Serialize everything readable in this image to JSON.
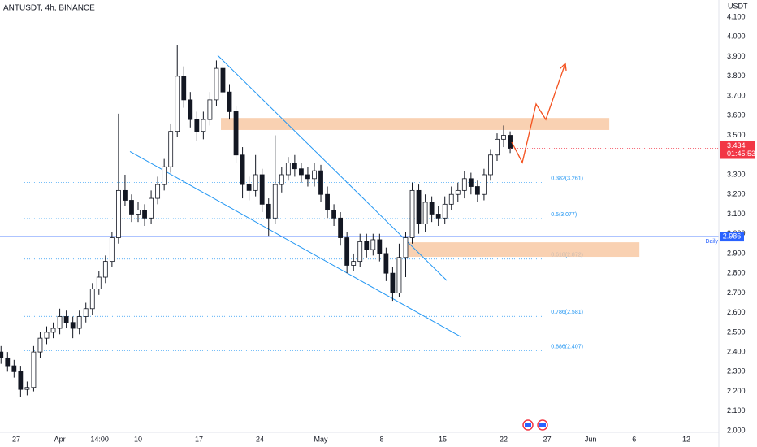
{
  "chart_data": {
    "type": "candlestick",
    "title": "ANTUSDT, 4h, BINANCE",
    "y_axis_label": "USDT",
    "up_color": "#ffffff",
    "down_color": "#131722",
    "ylim": [
      1.992,
      4.187
    ],
    "yticks": [
      {
        "value": 2.0,
        "label": "2.000"
      },
      {
        "value": 2.1,
        "label": "2.100"
      },
      {
        "value": 2.2,
        "label": "2.200"
      },
      {
        "value": 2.3,
        "label": "2.300"
      },
      {
        "value": 2.4,
        "label": "2.400"
      },
      {
        "value": 2.5,
        "label": "2.500"
      },
      {
        "value": 2.6,
        "label": "2.600"
      },
      {
        "value": 2.7,
        "label": "2.700"
      },
      {
        "value": 2.8,
        "label": "2.800"
      },
      {
        "value": 2.9,
        "label": "2.900"
      },
      {
        "value": 3.0,
        "label": "3.000"
      },
      {
        "value": 3.1,
        "label": "3.100"
      },
      {
        "value": 3.2,
        "label": "3.200"
      },
      {
        "value": 3.3,
        "label": "3.300"
      },
      {
        "value": 3.4,
        "label": "3.400"
      },
      {
        "value": 3.5,
        "label": "3.500"
      },
      {
        "value": 3.6,
        "label": "3.600"
      },
      {
        "value": 3.7,
        "label": "3.700"
      },
      {
        "value": 3.8,
        "label": "3.800"
      },
      {
        "value": 3.9,
        "label": "3.900"
      },
      {
        "value": 4.0,
        "label": "4.000"
      },
      {
        "value": 4.1,
        "label": "4.100"
      }
    ],
    "xlim": [
      -1.867,
      80.73
    ],
    "xticks": [
      {
        "value": 0,
        "label": "27"
      },
      {
        "value": 5,
        "label": "Apr"
      },
      {
        "value": 9.583,
        "label": "14:00"
      },
      {
        "value": 14,
        "label": "10"
      },
      {
        "value": 21,
        "label": "17"
      },
      {
        "value": 28,
        "label": "24"
      },
      {
        "value": 35,
        "label": "May"
      },
      {
        "value": 42,
        "label": "8"
      },
      {
        "value": 49,
        "label": "15"
      },
      {
        "value": 56,
        "label": "22"
      },
      {
        "value": 61,
        "label": "27"
      },
      {
        "value": 66,
        "label": "Jun"
      },
      {
        "value": 71,
        "label": "6"
      },
      {
        "value": 77,
        "label": "12"
      }
    ],
    "x": [
      -1.75,
      -1,
      -0.25,
      0.5,
      1.25,
      2,
      2.75,
      3.5,
      4.25,
      5,
      5.75,
      6.5,
      7.25,
      8,
      8.75,
      9.5,
      10.25,
      11,
      11.75,
      12.5,
      13.25,
      14,
      14.75,
      15.5,
      16.25,
      17,
      17.75,
      18.5,
      19.25,
      20,
      20.75,
      21.5,
      22.25,
      23,
      23.75,
      24.5,
      25.25,
      26,
      26.75,
      27.5,
      28.25,
      29,
      29.75,
      30.5,
      31.25,
      32,
      32.75,
      33.5,
      34.25,
      35,
      35.75,
      36.5,
      37.25,
      38,
      38.75,
      39.5,
      40.25,
      41,
      41.75,
      42.5,
      43.25,
      44,
      44.75,
      45.5,
      46.25,
      47,
      47.75,
      48.5,
      49.25,
      50,
      50.75,
      51.5,
      52.25,
      53,
      53.75,
      54.5,
      55.25,
      56,
      56.75
    ],
    "open": [
      2.4,
      2.37,
      2.33,
      2.3,
      2.21,
      2.22,
      2.4,
      2.47,
      2.5,
      2.52,
      2.58,
      2.55,
      2.52,
      2.58,
      2.62,
      2.72,
      2.78,
      2.86,
      2.98,
      3.22,
      3.17,
      3.1,
      3.12,
      3.08,
      3.18,
      3.25,
      3.34,
      3.52,
      3.8,
      3.68,
      3.58,
      3.52,
      3.58,
      3.68,
      3.84,
      3.72,
      3.62,
      3.4,
      3.25,
      3.22,
      3.3,
      3.15,
      3.08,
      3.25,
      3.3,
      3.36,
      3.33,
      3.3,
      3.28,
      3.32,
      3.2,
      3.12,
      3.08,
      2.98,
      2.84,
      2.86,
      2.96,
      2.92,
      2.97,
      2.9,
      2.8,
      2.7,
      2.88,
      2.98,
      3.22,
      3.05,
      3.16,
      3.1,
      3.08,
      3.15,
      3.2,
      3.22,
      3.28,
      3.24,
      3.2,
      3.3,
      3.4,
      3.48,
      3.5
    ],
    "high": [
      2.43,
      2.4,
      2.36,
      2.33,
      2.25,
      2.43,
      2.5,
      2.53,
      2.55,
      2.62,
      2.61,
      2.58,
      2.61,
      2.65,
      2.75,
      2.81,
      2.89,
      3.01,
      3.61,
      3.3,
      3.2,
      3.16,
      3.15,
      3.22,
      3.29,
      3.38,
      3.56,
      3.96,
      3.85,
      3.72,
      3.62,
      3.62,
      3.72,
      3.88,
      3.87,
      3.76,
      3.65,
      3.44,
      3.29,
      3.4,
      3.33,
      3.18,
      3.5,
      3.34,
      3.39,
      3.4,
      3.36,
      3.34,
      3.36,
      3.35,
      3.24,
      3.15,
      3.11,
      3.01,
      2.9,
      3.0,
      3.0,
      3.0,
      3.0,
      2.93,
      2.83,
      2.95,
      3.01,
      3.26,
      3.25,
      3.2,
      3.19,
      3.14,
      3.19,
      3.24,
      3.26,
      3.32,
      3.31,
      3.27,
      3.33,
      3.43,
      3.51,
      3.55,
      3.52
    ],
    "low": [
      2.34,
      2.3,
      2.27,
      2.17,
      2.18,
      2.2,
      2.37,
      2.44,
      2.47,
      2.49,
      2.52,
      2.47,
      2.49,
      2.55,
      2.59,
      2.69,
      2.75,
      2.83,
      2.95,
      3.14,
      3.06,
      3.06,
      3.04,
      3.05,
      3.15,
      3.22,
      3.31,
      3.49,
      3.64,
      3.54,
      3.47,
      3.48,
      3.55,
      3.65,
      3.68,
      3.58,
      3.36,
      3.18,
      3.17,
      3.19,
      3.11,
      2.99,
      3.05,
      3.21,
      3.27,
      3.29,
      3.26,
      3.24,
      3.24,
      3.16,
      3.08,
      3.04,
      2.94,
      2.8,
      2.81,
      2.83,
      2.88,
      2.89,
      2.86,
      2.76,
      2.66,
      2.68,
      2.78,
      2.95,
      3.0,
      3.01,
      3.06,
      3.04,
      3.05,
      3.12,
      3.16,
      3.18,
      3.2,
      3.16,
      3.17,
      3.27,
      3.37,
      3.44,
      3.41
    ],
    "close": [
      2.37,
      2.33,
      2.3,
      2.21,
      2.22,
      2.4,
      2.47,
      2.5,
      2.52,
      2.58,
      2.55,
      2.52,
      2.58,
      2.62,
      2.72,
      2.78,
      2.86,
      2.98,
      3.22,
      3.17,
      3.1,
      3.12,
      3.08,
      3.18,
      3.25,
      3.34,
      3.52,
      3.8,
      3.68,
      3.58,
      3.52,
      3.58,
      3.68,
      3.84,
      3.72,
      3.62,
      3.4,
      3.25,
      3.22,
      3.3,
      3.15,
      3.08,
      3.25,
      3.3,
      3.36,
      3.33,
      3.3,
      3.28,
      3.32,
      3.2,
      3.12,
      3.08,
      2.98,
      2.84,
      2.86,
      2.96,
      2.92,
      2.97,
      2.9,
      2.8,
      2.7,
      2.88,
      2.98,
      3.22,
      3.05,
      3.16,
      3.1,
      3.08,
      3.15,
      3.2,
      3.22,
      3.28,
      3.24,
      3.2,
      3.3,
      3.4,
      3.48,
      3.5,
      3.434
    ],
    "countdown": "01:45:53",
    "price_line_color": "#f23645",
    "horizontal_line": {
      "value": 2.986,
      "label": "Daily",
      "color": "#2962ff"
    },
    "fib_color": "#2196f3",
    "fib_x": [
      0.93,
      60.5
    ],
    "fib_levels": [
      {
        "value": 3.261,
        "label": "0.382(3.261)"
      },
      {
        "value": 3.077,
        "label": "0.5(3.077)"
      },
      {
        "value": 2.872,
        "label": "0.618(2.872)"
      },
      {
        "value": 2.581,
        "label": "0.786(2.581)"
      },
      {
        "value": 2.407,
        "label": "0.886(2.407)"
      }
    ],
    "zone_color": "#f7c59f",
    "zones": [
      {
        "x": [
          23.52,
          68.14
        ],
        "y": [
          3.527,
          3.588
        ]
      },
      {
        "x": [
          44.52,
          71.6
        ],
        "y": [
          2.883,
          2.957
        ]
      }
    ],
    "trendline_color": "#2196f3",
    "trendlines": [
      {
        "x": [
          23.15,
          49.47
        ],
        "y": [
          3.906,
          2.763
        ]
      },
      {
        "x": [
          13.07,
          51.05
        ],
        "y": [
          3.418,
          2.478
        ]
      }
    ],
    "projection_color": "#f4511e",
    "projection": {
      "x": [
        56.93,
        58.15,
        59.73,
        60.85,
        63.09
      ],
      "y": [
        3.465,
        3.362,
        3.659,
        3.58,
        3.865
      ]
    }
  }
}
